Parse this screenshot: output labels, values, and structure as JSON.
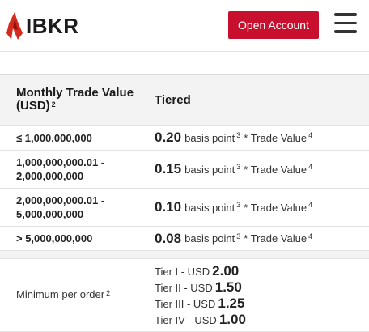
{
  "header": {
    "logo_text": "IBKR",
    "open_account_label": "Open Account"
  },
  "table": {
    "header": {
      "col1": "Monthly Trade Value (USD)",
      "col1_sup": "2",
      "col2": "Tiered"
    },
    "rows": [
      {
        "range": "≤ 1,000,000,000",
        "rate": "0.20",
        "unit": "basis point",
        "sup1": "3",
        "mult": "* Trade Value",
        "sup2": "4"
      },
      {
        "range": "1,000,000,000.01 - 2,000,000,000",
        "rate": "0.15",
        "unit": "basis point",
        "sup1": "3",
        "mult": "* Trade Value",
        "sup2": "4"
      },
      {
        "range": "2,000,000,000.01 - 5,000,000,000",
        "rate": "0.10",
        "unit": "basis point",
        "sup1": "3",
        "mult": "* Trade Value",
        "sup2": "4"
      },
      {
        "range": "> 5,000,000,000",
        "rate": "0.08",
        "unit": "basis point",
        "sup1": "3",
        "mult": "* Trade Value",
        "sup2": "4"
      }
    ],
    "minimum": {
      "label": "Minimum per order",
      "sup": "2",
      "tiers": [
        {
          "label": "Tier I - USD",
          "value": "2.00"
        },
        {
          "label": "Tier II - USD",
          "value": "1.50"
        },
        {
          "label": "Tier III - USD",
          "value": "1.25"
        },
        {
          "label": "Tier IV - USD",
          "value": "1.00"
        }
      ]
    }
  }
}
